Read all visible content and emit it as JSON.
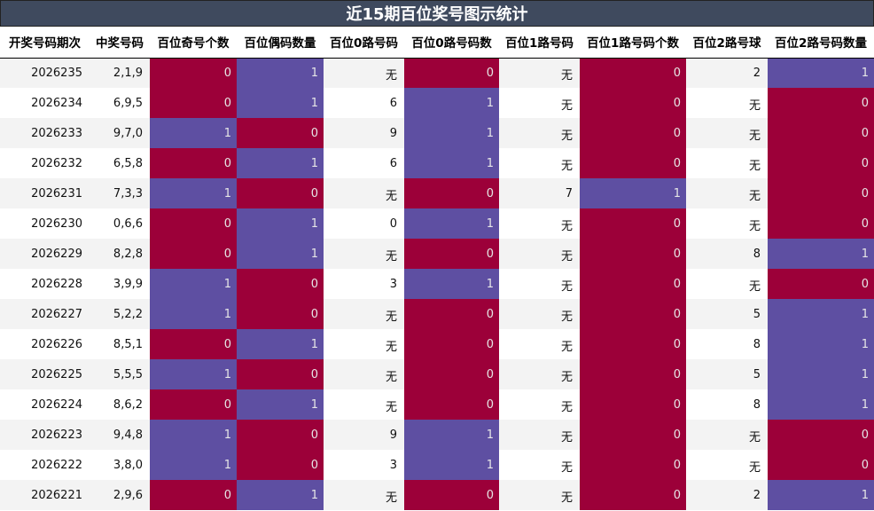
{
  "title": "近15期百位奖号图示统计",
  "headers": [
    "开奖号码期次",
    "中奖号码",
    "百位奇号个数",
    "百位偶码数量",
    "百位0路号码",
    "百位0路号码数",
    "百位1路号码",
    "百位1路号码个数",
    "百位2路号球",
    "百位2路号码数量"
  ],
  "colors": {
    "red": "#9c0039",
    "blue": "#5e4fa2",
    "header_bg": "#3f4a5e"
  },
  "rows": [
    [
      "2026235",
      "2,1,9",
      "0",
      "1",
      "无",
      "0",
      "无",
      "0",
      "2",
      "1"
    ],
    [
      "2026234",
      "6,9,5",
      "0",
      "1",
      "6",
      "1",
      "无",
      "0",
      "无",
      "0"
    ],
    [
      "2026233",
      "9,7,0",
      "1",
      "0",
      "9",
      "1",
      "无",
      "0",
      "无",
      "0"
    ],
    [
      "2026232",
      "6,5,8",
      "0",
      "1",
      "6",
      "1",
      "无",
      "0",
      "无",
      "0"
    ],
    [
      "2026231",
      "7,3,3",
      "1",
      "0",
      "无",
      "0",
      "7",
      "1",
      "无",
      "0"
    ],
    [
      "2026230",
      "0,6,6",
      "0",
      "1",
      "0",
      "1",
      "无",
      "0",
      "无",
      "0"
    ],
    [
      "2026229",
      "8,2,8",
      "0",
      "1",
      "无",
      "0",
      "无",
      "0",
      "8",
      "1"
    ],
    [
      "2026228",
      "3,9,9",
      "1",
      "0",
      "3",
      "1",
      "无",
      "0",
      "无",
      "0"
    ],
    [
      "2026227",
      "5,2,2",
      "1",
      "0",
      "无",
      "0",
      "无",
      "0",
      "5",
      "1"
    ],
    [
      "2026226",
      "8,5,1",
      "0",
      "1",
      "无",
      "0",
      "无",
      "0",
      "8",
      "1"
    ],
    [
      "2026225",
      "5,5,5",
      "1",
      "0",
      "无",
      "0",
      "无",
      "0",
      "5",
      "1"
    ],
    [
      "2026224",
      "8,6,2",
      "0",
      "1",
      "无",
      "0",
      "无",
      "0",
      "8",
      "1"
    ],
    [
      "2026223",
      "9,4,8",
      "1",
      "0",
      "9",
      "1",
      "无",
      "0",
      "无",
      "0"
    ],
    [
      "2026222",
      "3,8,0",
      "1",
      "0",
      "3",
      "1",
      "无",
      "0",
      "无",
      "0"
    ],
    [
      "2026221",
      "2,9,6",
      "0",
      "1",
      "无",
      "0",
      "无",
      "0",
      "2",
      "1"
    ]
  ]
}
